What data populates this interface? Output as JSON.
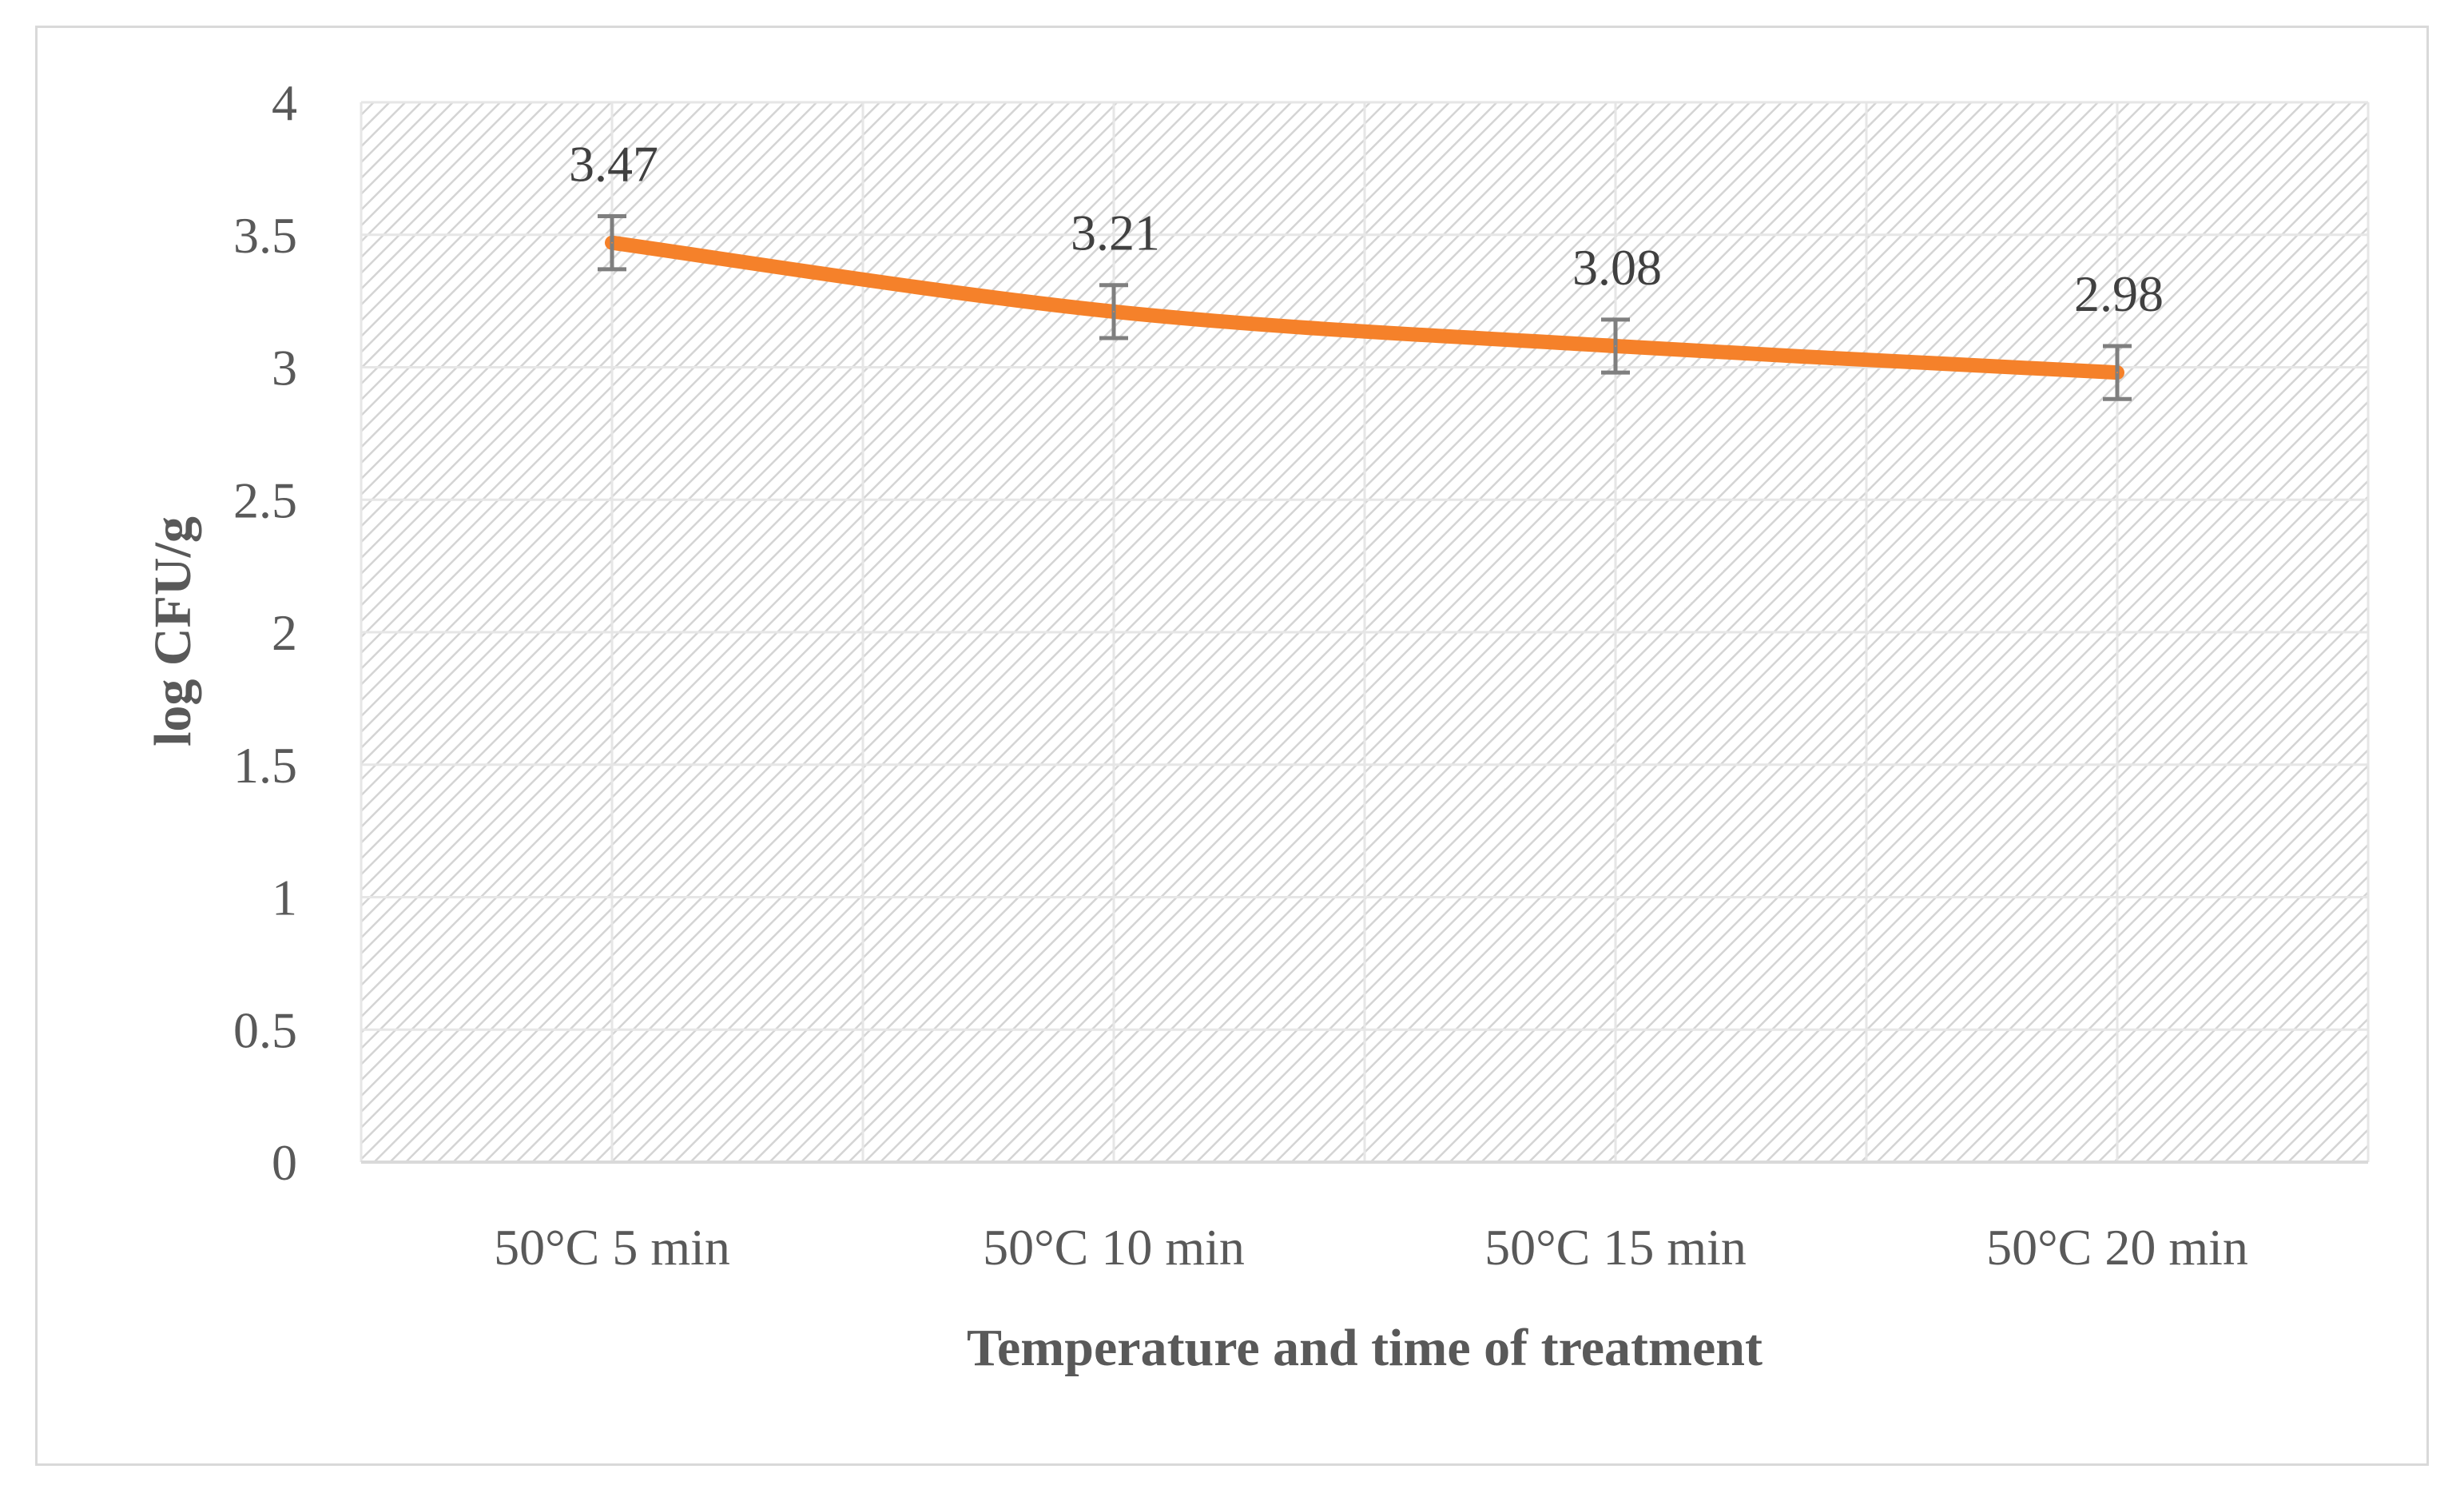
{
  "chart_data": {
    "type": "line",
    "title": "",
    "categories": [
      "50°C 5 min",
      "50°C 10 min",
      "50°C 15 min",
      "50°C 20 min"
    ],
    "series": [
      {
        "name": "log CFU/g",
        "values": [
          3.47,
          3.21,
          3.08,
          2.98
        ],
        "error": [
          0.1,
          0.1,
          0.1,
          0.1
        ],
        "labels": [
          "3.47",
          "3.21",
          "3.08",
          "2.98"
        ],
        "color": "#F5812A"
      }
    ],
    "xlabel": "Temperature and time of treatment",
    "ylabel": "log CFU/g",
    "ylim": [
      0,
      4
    ],
    "yticks": [
      0,
      0.5,
      1,
      1.5,
      2,
      2.5,
      3,
      3.5,
      4
    ],
    "ytick_labels": [
      "0",
      "0.5",
      "1",
      "1.5",
      "2",
      "2.5",
      "3",
      "3.5",
      "4"
    ],
    "grid": true,
    "legend": "none"
  },
  "colors": {
    "line": "#F5812A",
    "grid": "#e6e6e6",
    "hatch": "#d4d4d4",
    "error_bar": "#7f7f7f",
    "text": "#595959"
  }
}
